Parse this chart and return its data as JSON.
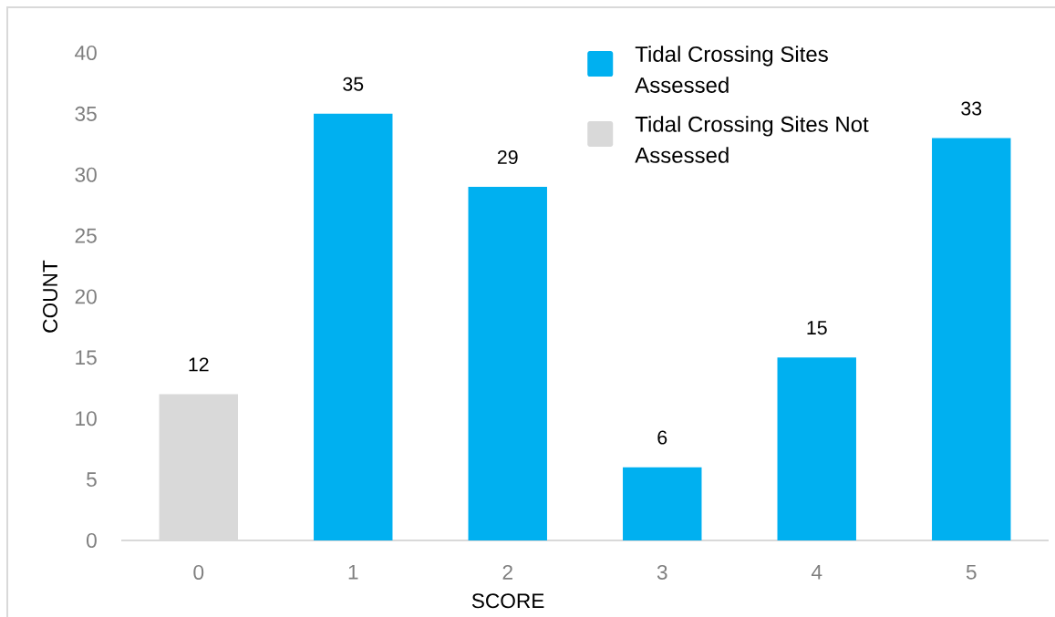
{
  "chart_data": {
    "type": "bar",
    "xlabel": "SCORE",
    "ylabel": "COUNT",
    "categories": [
      "0",
      "1",
      "2",
      "3",
      "4",
      "5"
    ],
    "series": [
      {
        "name": "Tidal Crossing Sites Assessed",
        "color": "#00b0f0",
        "values": [
          null,
          35,
          29,
          6,
          15,
          33
        ]
      },
      {
        "name": "Tidal Crossing Sites Not Assessed",
        "color": "#d9d9d9",
        "values": [
          12,
          null,
          null,
          null,
          null,
          null
        ]
      }
    ],
    "stacked": true,
    "ylim": [
      0,
      40
    ],
    "yticks": [
      0,
      5,
      10,
      15,
      20,
      25,
      30,
      35,
      40
    ],
    "data_labels": true,
    "legend": "top"
  }
}
